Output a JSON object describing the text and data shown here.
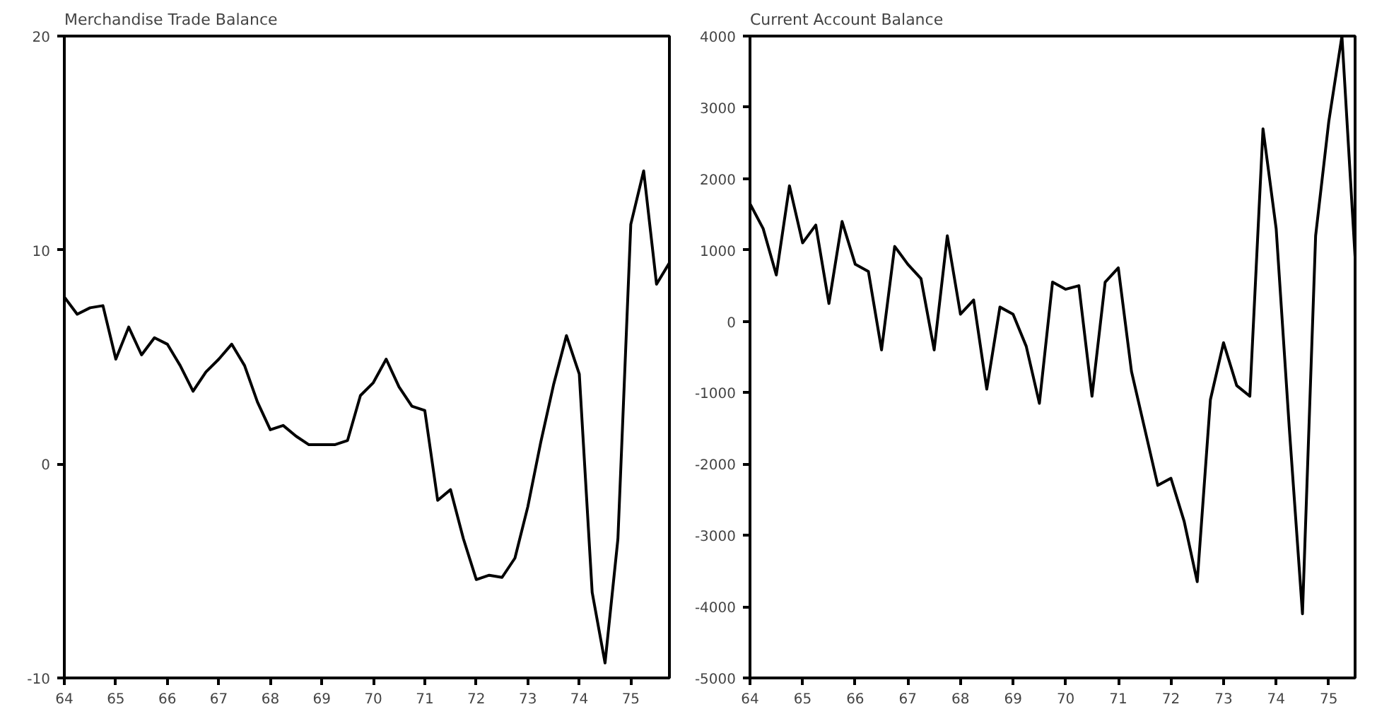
{
  "chart_data": [
    {
      "type": "line",
      "title": "Merchandise Trade Balance",
      "xlim": [
        64,
        75.75
      ],
      "xticks": [
        64,
        65,
        66,
        67,
        68,
        69,
        70,
        71,
        72,
        73,
        74,
        75
      ],
      "ylim": [
        -10,
        20
      ],
      "yticks": [
        -10,
        0,
        10,
        20
      ],
      "series": [
        {
          "color": "#000000",
          "x": [
            64,
            64.25,
            64.5,
            64.75,
            65,
            65.25,
            65.5,
            65.75,
            66,
            66.25,
            66.5,
            66.75,
            67,
            67.25,
            67.5,
            67.75,
            68,
            68.25,
            68.5,
            68.75,
            69,
            69.25,
            69.5,
            69.75,
            70,
            70.25,
            70.5,
            70.75,
            71,
            71.25,
            71.5,
            71.75,
            72,
            72.25,
            72.5,
            72.75,
            73,
            73.25,
            73.5,
            73.75,
            74,
            74.25,
            74.5,
            74.75,
            75,
            75.25,
            75.5,
            75.75
          ],
          "values": [
            7.8,
            7.0,
            7.3,
            7.4,
            4.9,
            6.4,
            5.1,
            5.9,
            5.6,
            4.6,
            3.4,
            4.3,
            4.9,
            5.6,
            4.6,
            2.9,
            1.6,
            1.8,
            1.3,
            0.9,
            0.9,
            0.9,
            1.1,
            3.2,
            3.8,
            4.9,
            3.6,
            2.7,
            2.5,
            -1.7,
            -1.2,
            -3.5,
            -5.4,
            -5.2,
            -5.3,
            -4.4,
            -2.0,
            1.0,
            3.7,
            6.0,
            4.2,
            -6.0,
            -9.3,
            -3.5,
            11.2,
            13.7,
            8.4,
            9.4
          ]
        }
      ]
    },
    {
      "type": "line",
      "title": "Current Account Balance",
      "xlim": [
        64,
        75.5
      ],
      "xticks": [
        64,
        65,
        66,
        67,
        68,
        69,
        70,
        71,
        72,
        73,
        74,
        75
      ],
      "ylim": [
        -5000,
        4000
      ],
      "yticks": [
        -5000,
        -4000,
        -3000,
        -2000,
        -1000,
        0,
        1000,
        2000,
        3000,
        4000
      ],
      "series": [
        {
          "color": "#000000",
          "x": [
            64,
            64.25,
            64.5,
            64.75,
            65,
            65.25,
            65.5,
            65.75,
            66,
            66.25,
            66.5,
            66.75,
            67,
            67.25,
            67.5,
            67.75,
            68,
            68.25,
            68.5,
            68.75,
            69,
            69.25,
            69.5,
            69.75,
            70,
            70.25,
            70.5,
            70.75,
            71,
            71.25,
            71.5,
            71.75,
            72,
            72.25,
            72.5,
            72.75,
            73,
            73.25,
            73.5,
            73.75,
            74,
            74.25,
            74.5,
            74.75,
            75,
            75.25,
            75.5
          ],
          "values": [
            1650,
            1300,
            650,
            1900,
            1100,
            1350,
            250,
            1400,
            800,
            700,
            -400,
            1050,
            800,
            600,
            -400,
            1200,
            100,
            300,
            -950,
            200,
            100,
            -350,
            -1150,
            550,
            450,
            500,
            -1050,
            550,
            750,
            -700,
            -1500,
            -2300,
            -2200,
            -2800,
            -3650,
            -1100,
            -300,
            -900,
            -1050,
            2700,
            1300,
            -1500,
            -4100,
            1200,
            2800,
            4000,
            900
          ]
        }
      ]
    }
  ]
}
